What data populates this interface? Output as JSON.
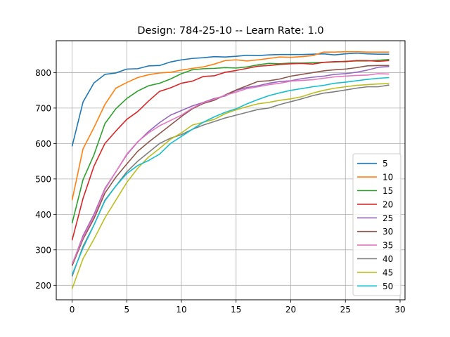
{
  "chart_data": {
    "type": "line",
    "title": "Design: 784-25-10 -- Learn Rate: 1.0",
    "xlabel": "",
    "ylabel": "",
    "xlim": [
      -1.45,
      30.45
    ],
    "ylim": [
      159,
      890
    ],
    "xticks": [
      0,
      5,
      10,
      15,
      20,
      25,
      30
    ],
    "yticks": [
      200,
      300,
      400,
      500,
      600,
      700,
      800
    ],
    "grid": true,
    "legend_position": "lower-right",
    "series": [
      {
        "name": "5",
        "color": "#1f77b4",
        "values": [
          592,
          717,
          771,
          795,
          799,
          810,
          811,
          819,
          820,
          830,
          836,
          840,
          842,
          845,
          844,
          846,
          849,
          848,
          850,
          851,
          851,
          851,
          852,
          853,
          850,
          853,
          855,
          853,
          852,
          852
        ]
      },
      {
        "name": "10",
        "color": "#ff7f0e",
        "values": [
          440,
          585,
          645,
          710,
          756,
          772,
          786,
          794,
          799,
          801,
          807,
          812,
          816,
          824,
          834,
          836,
          833,
          836,
          840,
          844,
          843,
          845,
          848,
          858,
          858,
          859,
          859,
          858,
          858,
          858
        ]
      },
      {
        "name": "15",
        "color": "#2ca02c",
        "values": [
          375,
          498,
          568,
          656,
          698,
          727,
          748,
          763,
          770,
          782,
          797,
          808,
          811,
          812,
          814,
          813,
          816,
          822,
          826,
          825,
          827,
          827,
          828,
          829,
          830,
          832,
          833,
          833,
          835,
          837
        ]
      },
      {
        "name": "20",
        "color": "#d62728",
        "values": [
          327,
          445,
          536,
          600,
          635,
          668,
          690,
          720,
          747,
          757,
          770,
          776,
          789,
          791,
          801,
          806,
          812,
          818,
          820,
          823,
          825,
          826,
          824,
          829,
          831,
          831,
          834,
          834,
          832,
          834
        ]
      },
      {
        "name": "25",
        "color": "#9467bd",
        "values": [
          258,
          340,
          400,
          473,
          520,
          568,
          604,
          634,
          659,
          680,
          693,
          706,
          716,
          727,
          734,
          750,
          758,
          763,
          770,
          775,
          777,
          783,
          787,
          790,
          795,
          797,
          801,
          807,
          815,
          817
        ]
      },
      {
        "name": "30",
        "color": "#8c564b",
        "values": [
          255,
          330,
          388,
          460,
          505,
          542,
          578,
          604,
          628,
          652,
          676,
          698,
          713,
          722,
          737,
          751,
          763,
          775,
          777,
          782,
          790,
          795,
          800,
          805,
          808,
          810,
          814,
          819,
          820,
          820
        ]
      },
      {
        "name": "35",
        "color": "#e377c2",
        "values": [
          260,
          335,
          395,
          470,
          520,
          570,
          605,
          630,
          650,
          665,
          680,
          700,
          715,
          725,
          736,
          745,
          755,
          760,
          766,
          770,
          776,
          778,
          780,
          784,
          788,
          790,
          792,
          793,
          797,
          796
        ]
      },
      {
        "name": "40",
        "color": "#7f7f7f",
        "values": [
          225,
          310,
          370,
          440,
          480,
          520,
          550,
          575,
          600,
          615,
          625,
          640,
          652,
          662,
          672,
          680,
          688,
          696,
          700,
          710,
          718,
          726,
          735,
          742,
          746,
          751,
          756,
          760,
          760,
          765
        ]
      },
      {
        "name": "45",
        "color": "#bcbd22",
        "values": [
          190,
          275,
          330,
          390,
          440,
          490,
          530,
          562,
          586,
          612,
          630,
          652,
          660,
          668,
          684,
          695,
          704,
          712,
          716,
          722,
          726,
          732,
          742,
          750,
          756,
          760,
          764,
          766,
          768,
          769
        ]
      },
      {
        "name": "50",
        "color": "#17becf",
        "values": [
          230,
          305,
          370,
          438,
          480,
          515,
          538,
          552,
          570,
          600,
          620,
          640,
          660,
          675,
          688,
          698,
          712,
          724,
          735,
          743,
          750,
          755,
          760,
          764,
          770,
          773,
          777,
          781,
          784,
          786
        ]
      }
    ]
  }
}
